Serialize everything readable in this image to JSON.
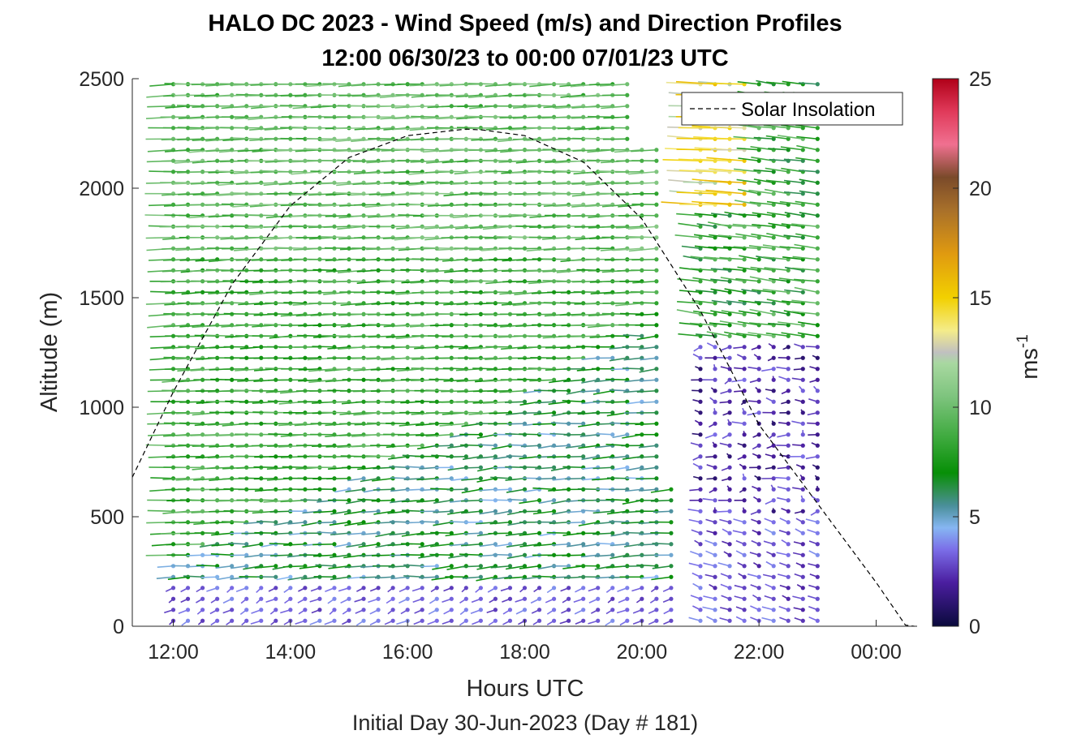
{
  "chart_data": {
    "type": "wind barb profile",
    "title": "HALO DC 2023 - Wind Speed (m/s) and Direction Profiles",
    "subtitle": "12:00 06/30/23 to 00:00 07/01/23  UTC",
    "xlabel": "Hours UTC",
    "ylabel": "Altitude (m)",
    "footer": "Initial Day 30-Jun-2023 (Day # 181)",
    "x_ticks": [
      "12:00",
      "14:00",
      "16:00",
      "18:00",
      "20:00",
      "22:00",
      "00:00"
    ],
    "x_tick_hours": [
      12,
      14,
      16,
      18,
      20,
      22,
      24
    ],
    "xlim": [
      11.3,
      24.7
    ],
    "y_ticks": [
      "0",
      "500",
      "1000",
      "1500",
      "2000",
      "2500"
    ],
    "y_tick_values": [
      0,
      500,
      1000,
      1500,
      2000,
      2500
    ],
    "ylim": [
      0,
      2500
    ],
    "colorbar": {
      "label": "ms",
      "label_exponent": "-1",
      "ticks": [
        "0",
        "5",
        "10",
        "15",
        "20",
        "25"
      ],
      "tick_values": [
        0,
        5,
        10,
        15,
        20,
        25
      ],
      "range": [
        0,
        25
      ],
      "colors": [
        [
          0,
          "#0a0a3c"
        ],
        [
          2,
          "#4b1ea0"
        ],
        [
          3.5,
          "#7b6ee8"
        ],
        [
          4.5,
          "#86b6f2"
        ],
        [
          5.5,
          "#4a8f9a"
        ],
        [
          6.2,
          "#2f8f52"
        ],
        [
          7,
          "#078f07"
        ],
        [
          8.5,
          "#3aa83a"
        ],
        [
          10.5,
          "#7ec47e"
        ],
        [
          12,
          "#a8d8a0"
        ],
        [
          12.5,
          "#c0c0c0"
        ],
        [
          13.5,
          "#f4ec8a"
        ],
        [
          15,
          "#f2d000"
        ],
        [
          17,
          "#e09a10"
        ],
        [
          19,
          "#a8702a"
        ],
        [
          20.5,
          "#7a4a2a"
        ],
        [
          22,
          "#f07090"
        ],
        [
          23.5,
          "#e03a5a"
        ],
        [
          25,
          "#b00018"
        ]
      ]
    },
    "legend": {
      "entries": [
        "Solar Insolation"
      ],
      "location": "top-right"
    },
    "solar_insolation": {
      "x_hours": [
        11.3,
        12.0,
        13.0,
        14.0,
        15.0,
        16.0,
        17.0,
        17.3,
        18.0,
        19.0,
        20.0,
        21.0,
        22.0,
        23.0,
        24.0,
        24.5,
        24.65
      ],
      "y_altitude": [
        680,
        1070,
        1560,
        1920,
        2140,
        2240,
        2270,
        2265,
        2240,
        2120,
        1860,
        1440,
        920,
        560,
        200,
        5,
        0
      ]
    },
    "wind_profiles": {
      "description": "Wind barbs: one column per profile time, one barb per altitude level; dot color = wind speed (m/s), stick direction = wind direction (deg, meteorological).",
      "profile_hours": [
        12.0,
        12.25,
        12.5,
        12.75,
        13.0,
        13.25,
        13.5,
        13.75,
        14.0,
        14.25,
        14.5,
        14.75,
        15.0,
        15.25,
        15.5,
        15.75,
        16.0,
        16.25,
        16.5,
        16.75,
        17.0,
        17.25,
        17.5,
        17.75,
        18.0,
        18.25,
        18.5,
        18.75,
        19.0,
        19.25,
        19.5,
        19.75,
        20.0,
        20.25,
        20.5,
        20.75,
        21.0,
        21.25,
        21.5,
        21.75,
        22.0,
        22.25,
        22.5,
        22.75,
        23.0
      ],
      "levels_m": [
        25,
        75,
        125,
        175,
        225,
        275,
        325,
        375,
        425,
        475,
        525,
        575,
        625,
        675,
        725,
        775,
        825,
        875,
        925,
        975,
        1025,
        1075,
        1125,
        1175,
        1225,
        1275,
        1325,
        1375,
        1425,
        1475,
        1525,
        1575,
        1625,
        1675,
        1725,
        1775,
        1825,
        1875,
        1925,
        1975,
        2025,
        2075,
        2125,
        2175,
        2225,
        2275,
        2325,
        2375,
        2425,
        2475
      ],
      "early_afternoon_upper": {
        "speed_ms": 7.5,
        "direction_deg": 260
      },
      "boundary_layer_near_surface": {
        "speed_ms": 3.0,
        "direction_deg": 200
      },
      "late_upper_jet": {
        "speed_ms": 14.0,
        "direction_deg": 270
      },
      "late_low_level": {
        "speed_ms": 2.0,
        "direction_deg": 300
      }
    }
  }
}
